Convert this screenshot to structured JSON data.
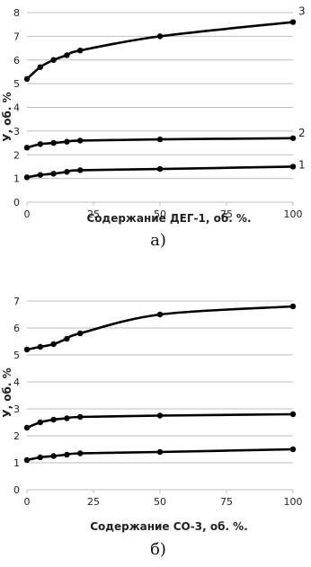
{
  "chart_data": [
    {
      "type": "line",
      "panel_label": "а)",
      "xlabel": "Содержание ДЕГ-1, об. %.",
      "ylabel": "У, об. %",
      "x_ticks": [
        "0",
        "25",
        "50",
        "75",
        "100"
      ],
      "y_ticks": [
        "0",
        "1",
        "2",
        "3",
        "4",
        "5",
        "6",
        "7",
        "8"
      ],
      "xlim": [
        0,
        100
      ],
      "ylim": [
        0,
        8
      ],
      "grid": "horizontal",
      "x": [
        0,
        5,
        10,
        15,
        20,
        50,
        100
      ],
      "series": [
        {
          "label": "1",
          "values": [
            1.05,
            1.15,
            1.2,
            1.28,
            1.35,
            1.4,
            1.5
          ]
        },
        {
          "label": "2",
          "values": [
            2.3,
            2.45,
            2.5,
            2.55,
            2.6,
            2.65,
            2.7
          ]
        },
        {
          "label": "3",
          "values": [
            5.2,
            5.7,
            6.0,
            6.2,
            6.4,
            7.0,
            7.6
          ]
        }
      ]
    },
    {
      "type": "line",
      "panel_label": "б)",
      "xlabel": "Содержание СО-3, об. %.",
      "ylabel": "У, об. %",
      "x_ticks": [
        "0",
        "25",
        "50",
        "75",
        "100"
      ],
      "y_ticks": [
        "0",
        "1",
        "2",
        "3",
        "4",
        "5",
        "6",
        "7"
      ],
      "xlim": [
        0,
        100
      ],
      "ylim": [
        0,
        7
      ],
      "grid": "horizontal",
      "x": [
        0,
        5,
        10,
        15,
        20,
        50,
        100
      ],
      "series": [
        {
          "values": [
            1.1,
            1.2,
            1.25,
            1.3,
            1.35,
            1.4,
            1.5
          ]
        },
        {
          "values": [
            2.3,
            2.5,
            2.6,
            2.65,
            2.7,
            2.75,
            2.8
          ]
        },
        {
          "values": [
            5.2,
            5.3,
            5.4,
            5.6,
            5.8,
            6.5,
            6.8
          ]
        }
      ]
    }
  ]
}
